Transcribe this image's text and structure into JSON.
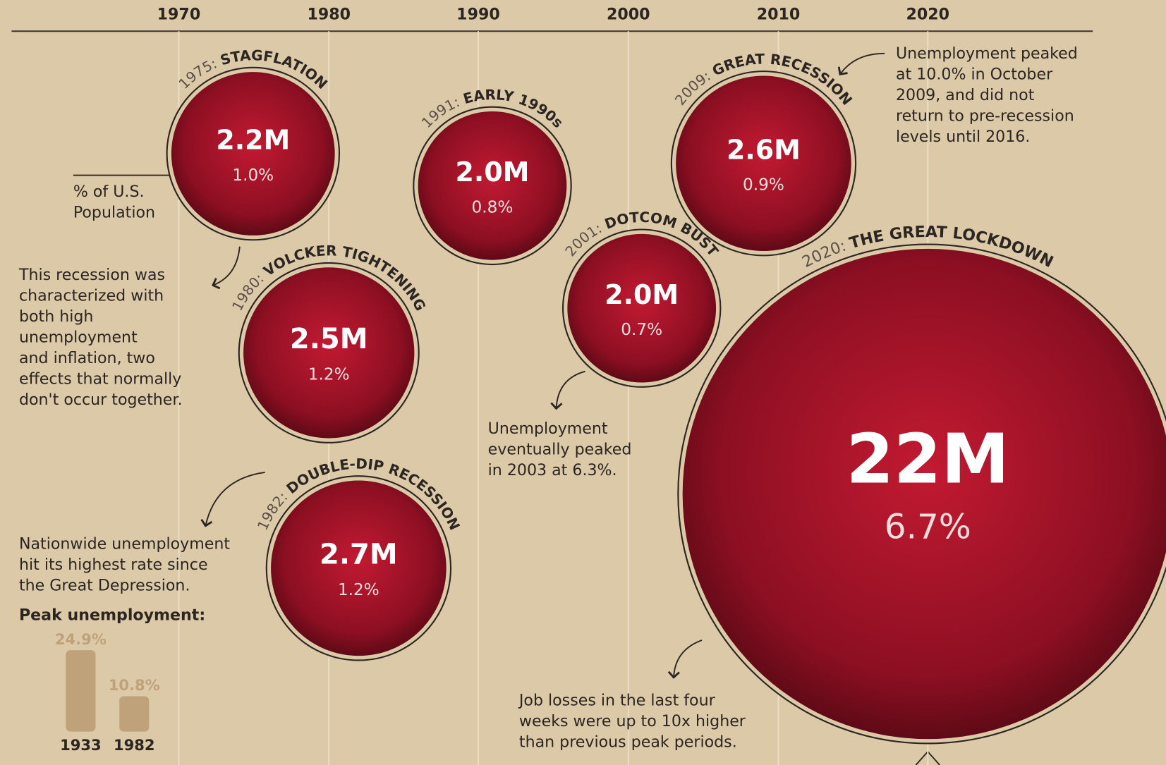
{
  "timeline": {
    "years": [
      "1970",
      "1980",
      "1990",
      "2000",
      "2010",
      "2020"
    ]
  },
  "recessions": [
    {
      "year": "1975:",
      "name": "STAGFLATION",
      "jobs": "2.2M",
      "share": "1.0%"
    },
    {
      "year": "1980:",
      "name": "VOLCKER TIGHTENING",
      "jobs": "2.5M",
      "share": "1.2%"
    },
    {
      "year": "1982:",
      "name": "DOUBLE-DIP RECESSION",
      "jobs": "2.7M",
      "share": "1.2%"
    },
    {
      "year": "1991:",
      "name": "EARLY 1990s",
      "jobs": "2.0M",
      "share": "0.8%"
    },
    {
      "year": "2001:",
      "name": "DOTCOM BUST",
      "jobs": "2.0M",
      "share": "0.7%"
    },
    {
      "year": "2009:",
      "name": "GREAT RECESSION",
      "jobs": "2.6M",
      "share": "0.9%"
    },
    {
      "year": "2020:",
      "name": "THE GREAT LOCKDOWN",
      "jobs": "22M",
      "share": "6.7%"
    }
  ],
  "annotations": {
    "population_label": [
      "% of U.S.",
      "Population"
    ],
    "stagflation": [
      "This recession was",
      "characterized with",
      "both high",
      "unemployment",
      "and inflation, two",
      "effects that normally",
      "don't occur together."
    ],
    "double_dip": [
      "Nationwide unemployment",
      "hit its highest rate since",
      "the Great Depression."
    ],
    "dotcom": [
      "Unemployment",
      "eventually peaked",
      "in 2003 at 6.3%."
    ],
    "great_recession": [
      "Unemployment peaked",
      "at 10.0% in October",
      "2009, and did not",
      "return to pre-recession",
      "levels until 2016."
    ],
    "lockdown": [
      "Job losses in the last four",
      "weeks were up to 10x higher",
      "than previous peak periods."
    ]
  },
  "peak_unemployment": {
    "title": "Peak unemployment:",
    "categories": [
      "1933",
      "1982"
    ],
    "values": [
      24.9,
      10.8
    ],
    "value_labels": [
      "24.9%",
      "10.8%"
    ]
  }
}
